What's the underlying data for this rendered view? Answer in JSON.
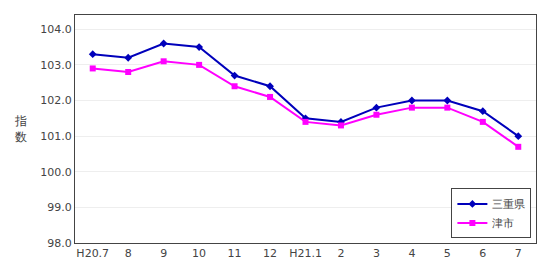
{
  "chart_data": {
    "type": "line",
    "categories": [
      "H20.7",
      "8",
      "9",
      "10",
      "11",
      "12",
      "H21.1",
      "2",
      "3",
      "4",
      "5",
      "6",
      "7"
    ],
    "series": [
      {
        "name": "三重県",
        "color": "#0000BB",
        "marker": "diamond",
        "values": [
          103.3,
          103.2,
          103.6,
          103.5,
          102.7,
          102.4,
          101.5,
          101.4,
          101.8,
          102.0,
          102.0,
          101.7,
          101.0
        ]
      },
      {
        "name": "津市",
        "color": "#FF00FF",
        "marker": "square",
        "values": [
          102.9,
          102.8,
          103.1,
          103.0,
          102.4,
          102.1,
          101.4,
          101.3,
          101.6,
          101.8,
          101.8,
          101.4,
          100.7
        ]
      }
    ],
    "ylabel": "指数",
    "ylim": [
      98.0,
      104.4
    ],
    "yticks": [
      {
        "value": 98,
        "label": "98.0"
      },
      {
        "value": 99,
        "label": "99.0"
      },
      {
        "value": 100,
        "label": "100.0"
      },
      {
        "value": 101,
        "label": "101.0"
      },
      {
        "value": 102,
        "label": "102.0"
      },
      {
        "value": 103,
        "label": "103.0"
      },
      {
        "value": 104,
        "label": "104.0"
      }
    ],
    "grid": "y",
    "legend": "lower right"
  }
}
